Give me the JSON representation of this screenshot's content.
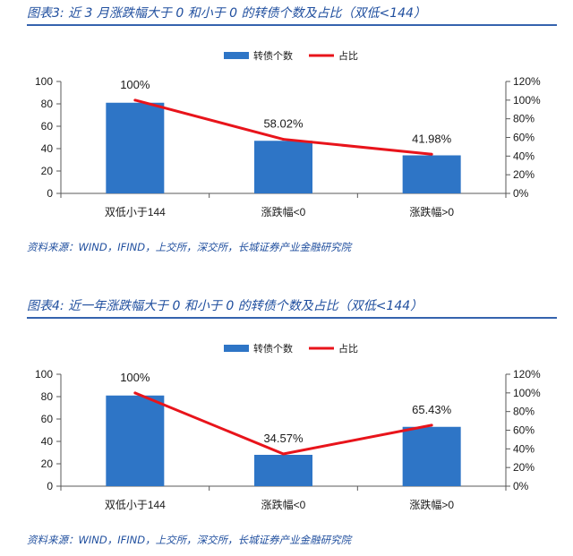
{
  "sections": [
    {
      "title": "图表3: 近 3 月涨跌幅大于 0 和小于 0 的转债个数及占比（双低<144）",
      "source": "资料来源：WIND，IFIND，上交所，深交所，长城证券产业金融研究院"
    },
    {
      "title": "图表4: 近一年涨跌幅大于 0 和小于 0 的转债个数及占比（双低<144）",
      "source": "资料来源：WIND，IFIND，上交所，深交所，长城证券产业金融研究院"
    }
  ],
  "colors": {
    "title": "#1F4E9E",
    "rule": "#3563AE",
    "bar": "#2E75C6",
    "line": "#E8141B"
  },
  "chart_data": [
    {
      "type": "bar",
      "categories": [
        "双低小于144",
        "涨跌幅<0",
        "涨跌幅>0"
      ],
      "series": [
        {
          "name": "转债个数",
          "type": "bar",
          "axis": "left",
          "values": [
            81,
            47,
            34
          ]
        },
        {
          "name": "占比",
          "type": "line",
          "axis": "right",
          "values": [
            100,
            58.02,
            41.98
          ],
          "labels": [
            "100%",
            "58.02%",
            "41.98%"
          ]
        }
      ],
      "ylim": [
        0,
        100
      ],
      "yticks": [
        0,
        20,
        40,
        60,
        80,
        100
      ],
      "y2lim": [
        0,
        120
      ],
      "y2ticks": [
        "0%",
        "20%",
        "40%",
        "60%",
        "80%",
        "100%",
        "120%"
      ],
      "legend": "top-center",
      "grid": false
    },
    {
      "type": "bar",
      "categories": [
        "双低小于144",
        "涨跌幅<0",
        "涨跌幅>0"
      ],
      "series": [
        {
          "name": "转债个数",
          "type": "bar",
          "axis": "left",
          "values": [
            81,
            28,
            53
          ]
        },
        {
          "name": "占比",
          "type": "line",
          "axis": "right",
          "values": [
            100,
            34.57,
            65.43
          ],
          "labels": [
            "100%",
            "34.57%",
            "65.43%"
          ]
        }
      ],
      "ylim": [
        0,
        100
      ],
      "yticks": [
        0,
        20,
        40,
        60,
        80,
        100
      ],
      "y2lim": [
        0,
        120
      ],
      "y2ticks": [
        "0%",
        "20%",
        "40%",
        "60%",
        "80%",
        "100%",
        "120%"
      ],
      "legend": "top-center",
      "grid": false
    }
  ]
}
